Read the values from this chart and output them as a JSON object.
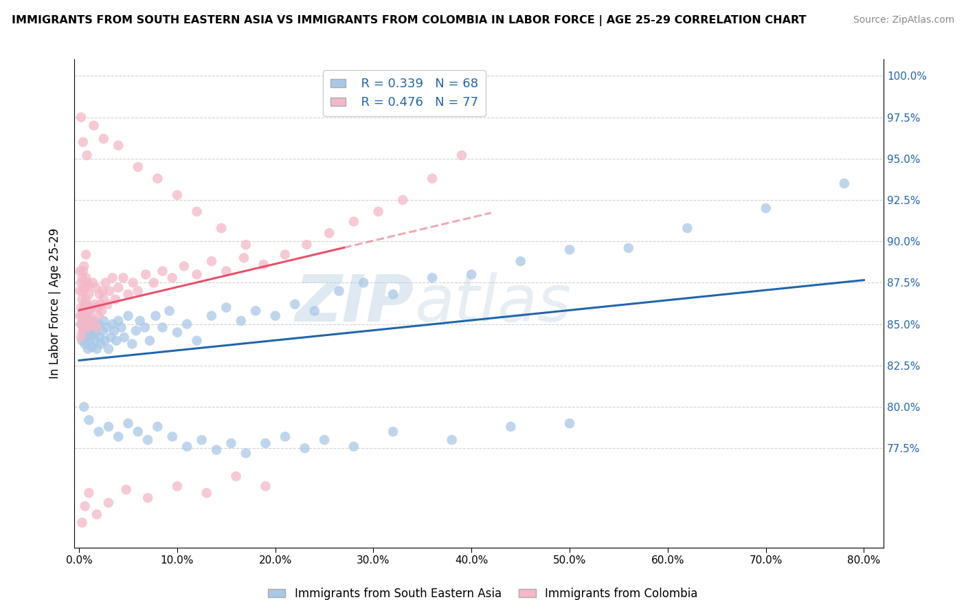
{
  "title": "IMMIGRANTS FROM SOUTH EASTERN ASIA VS IMMIGRANTS FROM COLOMBIA IN LABOR FORCE | AGE 25-29 CORRELATION CHART",
  "source": "Source: ZipAtlas.com",
  "ylabel": "In Labor Force | Age 25-29",
  "xlim": [
    -0.005,
    0.82
  ],
  "ylim": [
    0.715,
    1.01
  ],
  "xticks": [
    0.0,
    0.1,
    0.2,
    0.3,
    0.4,
    0.5,
    0.6,
    0.7,
    0.8
  ],
  "yticks": [
    0.775,
    0.8,
    0.825,
    0.85,
    0.875,
    0.9,
    0.925,
    0.95,
    0.975,
    1.0
  ],
  "ytick_labels": [
    "77.5%",
    "80.0%",
    "82.5%",
    "85.0%",
    "87.5%",
    "90.0%",
    "92.5%",
    "95.0%",
    "97.5%",
    "100.0%"
  ],
  "xtick_labels": [
    "0.0%",
    "10.0%",
    "20.0%",
    "30.0%",
    "40.0%",
    "50.0%",
    "60.0%",
    "70.0%",
    "80.0%"
  ],
  "blue_color": "#a8c8e8",
  "pink_color": "#f4b8c8",
  "blue_line_color": "#2166ac",
  "pink_line_color": "#e8506a",
  "R_blue": 0.339,
  "N_blue": 68,
  "R_pink": 0.476,
  "N_pink": 77,
  "legend_label_blue": "Immigrants from South Eastern Asia",
  "legend_label_pink": "Immigrants from Colombia",
  "watermark_zip": "ZIP",
  "watermark_atlas": "atlas",
  "pink_trend_solid_end_x": 0.27,
  "blue_x": [
    0.002,
    0.003,
    0.004,
    0.005,
    0.005,
    0.006,
    0.006,
    0.007,
    0.007,
    0.008,
    0.008,
    0.009,
    0.009,
    0.01,
    0.01,
    0.011,
    0.012,
    0.013,
    0.014,
    0.015,
    0.016,
    0.017,
    0.018,
    0.02,
    0.021,
    0.022,
    0.024,
    0.025,
    0.026,
    0.028,
    0.03,
    0.032,
    0.034,
    0.036,
    0.038,
    0.04,
    0.043,
    0.046,
    0.05,
    0.054,
    0.058,
    0.062,
    0.067,
    0.072,
    0.078,
    0.085,
    0.092,
    0.1,
    0.11,
    0.12,
    0.135,
    0.15,
    0.165,
    0.18,
    0.2,
    0.22,
    0.24,
    0.265,
    0.29,
    0.32,
    0.36,
    0.4,
    0.45,
    0.5,
    0.56,
    0.62,
    0.7,
    0.78
  ],
  "blue_y": [
    0.85,
    0.84,
    0.855,
    0.858,
    0.845,
    0.862,
    0.838,
    0.848,
    0.855,
    0.842,
    0.85,
    0.858,
    0.835,
    0.845,
    0.852,
    0.84,
    0.848,
    0.836,
    0.844,
    0.852,
    0.84,
    0.845,
    0.835,
    0.85,
    0.842,
    0.838,
    0.846,
    0.852,
    0.84,
    0.848,
    0.835,
    0.842,
    0.85,
    0.846,
    0.84,
    0.852,
    0.848,
    0.842,
    0.855,
    0.838,
    0.846,
    0.852,
    0.848,
    0.84,
    0.855,
    0.848,
    0.858,
    0.845,
    0.85,
    0.84,
    0.855,
    0.86,
    0.852,
    0.858,
    0.855,
    0.862,
    0.858,
    0.87,
    0.875,
    0.868,
    0.878,
    0.88,
    0.888,
    0.895,
    0.896,
    0.908,
    0.92,
    0.935
  ],
  "pink_x": [
    0.001,
    0.001,
    0.001,
    0.002,
    0.002,
    0.002,
    0.002,
    0.003,
    0.003,
    0.003,
    0.003,
    0.004,
    0.004,
    0.004,
    0.004,
    0.005,
    0.005,
    0.005,
    0.005,
    0.006,
    0.006,
    0.006,
    0.007,
    0.007,
    0.007,
    0.007,
    0.008,
    0.008,
    0.008,
    0.009,
    0.009,
    0.009,
    0.01,
    0.01,
    0.011,
    0.012,
    0.013,
    0.014,
    0.015,
    0.016,
    0.017,
    0.018,
    0.019,
    0.02,
    0.021,
    0.022,
    0.023,
    0.024,
    0.025,
    0.027,
    0.029,
    0.031,
    0.034,
    0.037,
    0.04,
    0.045,
    0.05,
    0.055,
    0.06,
    0.068,
    0.076,
    0.085,
    0.095,
    0.107,
    0.12,
    0.135,
    0.15,
    0.168,
    0.188,
    0.21,
    0.232,
    0.255,
    0.28,
    0.305,
    0.33,
    0.36,
    0.39
  ],
  "pink_y": [
    0.855,
    0.87,
    0.882,
    0.842,
    0.85,
    0.86,
    0.875,
    0.845,
    0.855,
    0.865,
    0.878,
    0.848,
    0.858,
    0.87,
    0.882,
    0.85,
    0.86,
    0.872,
    0.885,
    0.848,
    0.858,
    0.872,
    0.855,
    0.865,
    0.878,
    0.892,
    0.852,
    0.862,
    0.875,
    0.848,
    0.86,
    0.873,
    0.855,
    0.868,
    0.858,
    0.852,
    0.86,
    0.875,
    0.85,
    0.862,
    0.872,
    0.848,
    0.86,
    0.855,
    0.868,
    0.862,
    0.858,
    0.87,
    0.865,
    0.875,
    0.862,
    0.87,
    0.878,
    0.865,
    0.872,
    0.878,
    0.868,
    0.875,
    0.87,
    0.88,
    0.875,
    0.882,
    0.878,
    0.885,
    0.88,
    0.888,
    0.882,
    0.89,
    0.886,
    0.892,
    0.898,
    0.905,
    0.912,
    0.918,
    0.925,
    0.938,
    0.952
  ],
  "outlier_pink_high_x": [
    0.002,
    0.004,
    0.008,
    0.015,
    0.025,
    0.04,
    0.06,
    0.08,
    0.1,
    0.12,
    0.145,
    0.17
  ],
  "outlier_pink_high_y": [
    0.975,
    0.96,
    0.952,
    0.97,
    0.962,
    0.958,
    0.945,
    0.938,
    0.928,
    0.918,
    0.908,
    0.898
  ],
  "outlier_pink_low_x": [
    0.003,
    0.006,
    0.01,
    0.018,
    0.03,
    0.048,
    0.07,
    0.1,
    0.13,
    0.16,
    0.19
  ],
  "outlier_pink_low_y": [
    0.73,
    0.74,
    0.748,
    0.735,
    0.742,
    0.75,
    0.745,
    0.752,
    0.748,
    0.758,
    0.752
  ],
  "outlier_blue_low_x": [
    0.005,
    0.01,
    0.02,
    0.03,
    0.04,
    0.05,
    0.06,
    0.07,
    0.08,
    0.095,
    0.11,
    0.125,
    0.14,
    0.155,
    0.17,
    0.19,
    0.21,
    0.23,
    0.25,
    0.28,
    0.32,
    0.38,
    0.44,
    0.5
  ],
  "outlier_blue_low_y": [
    0.8,
    0.792,
    0.785,
    0.788,
    0.782,
    0.79,
    0.785,
    0.78,
    0.788,
    0.782,
    0.776,
    0.78,
    0.774,
    0.778,
    0.772,
    0.778,
    0.782,
    0.775,
    0.78,
    0.776,
    0.785,
    0.78,
    0.788,
    0.79
  ]
}
